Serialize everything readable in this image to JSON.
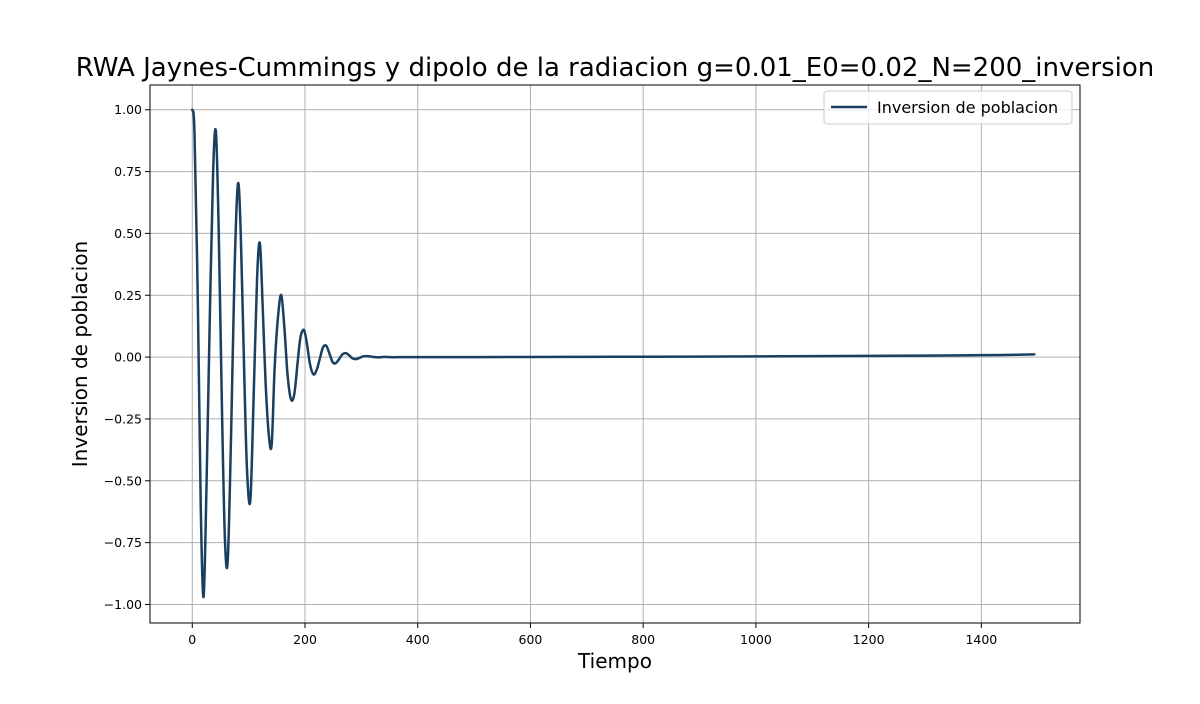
{
  "chart_data": {
    "type": "line",
    "title": "RWA Jaynes-Cummings y dipolo de la radiacion g=0.01_E0=0.02_N=200_inversion",
    "xlabel": "Tiempo",
    "ylabel": "Inversion de poblacion",
    "xlim": [
      -75,
      1575
    ],
    "ylim": [
      -1.075,
      1.1
    ],
    "grid": true,
    "legend_position": "top-right",
    "x_ticks": [
      0,
      200,
      400,
      600,
      800,
      1000,
      1200,
      1400
    ],
    "x_tick_labels": [
      "0",
      "200",
      "400",
      "600",
      "800",
      "1000",
      "1200",
      "1400"
    ],
    "y_ticks": [
      -1.0,
      -0.75,
      -0.5,
      -0.25,
      0.0,
      0.25,
      0.5,
      0.75,
      1.0
    ],
    "y_tick_labels": [
      "−1.00",
      "−0.75",
      "−0.50",
      "−0.25",
      "0.00",
      "0.25",
      "0.50",
      "0.75",
      "1.00"
    ],
    "series": [
      {
        "name": "Inversion de poblacion",
        "color": "#1b3f5f",
        "x": [
          0,
          4,
          10,
          15,
          20,
          25,
          31,
          37,
          42,
          47,
          53,
          58,
          63,
          69,
          75,
          81,
          86,
          92,
          97,
          103,
          109,
          115,
          120,
          125,
          130,
          136,
          141,
          146,
          152,
          158,
          164,
          169,
          175,
          181,
          187,
          192,
          198,
          203,
          209,
          215,
          221,
          227,
          232,
          238,
          244,
          249,
          254,
          260,
          266,
          272,
          278,
          284,
          290,
          296,
          302,
          308,
          314,
          320,
          330,
          340,
          350,
          360,
          370,
          380,
          400,
          500,
          600,
          700,
          800,
          900,
          1000,
          1100,
          1200,
          1300,
          1400,
          1450,
          1494
        ],
        "y": [
          1.0,
          0.9,
          0.2,
          -0.6,
          -0.97,
          -0.55,
          0.15,
          0.75,
          0.91,
          0.5,
          -0.25,
          -0.74,
          -0.82,
          -0.3,
          0.35,
          0.7,
          0.5,
          -0.05,
          -0.45,
          -0.58,
          -0.15,
          0.32,
          0.46,
          0.2,
          -0.1,
          -0.32,
          -0.35,
          -0.05,
          0.16,
          0.25,
          0.1,
          -0.07,
          -0.17,
          -0.15,
          -0.02,
          0.08,
          0.11,
          0.06,
          -0.03,
          -0.07,
          -0.05,
          0.0,
          0.04,
          0.045,
          0.01,
          -0.02,
          -0.025,
          -0.01,
          0.01,
          0.016,
          0.008,
          -0.005,
          -0.008,
          -0.004,
          0.002,
          0.004,
          0.003,
          0.001,
          -0.001,
          0.001,
          0.0,
          -0.0005,
          0.0,
          0.0,
          0.0,
          0.0,
          0.0005,
          0.001,
          0.0015,
          0.002,
          0.003,
          0.004,
          0.005,
          0.006,
          0.008,
          0.009,
          0.011
        ]
      }
    ]
  }
}
